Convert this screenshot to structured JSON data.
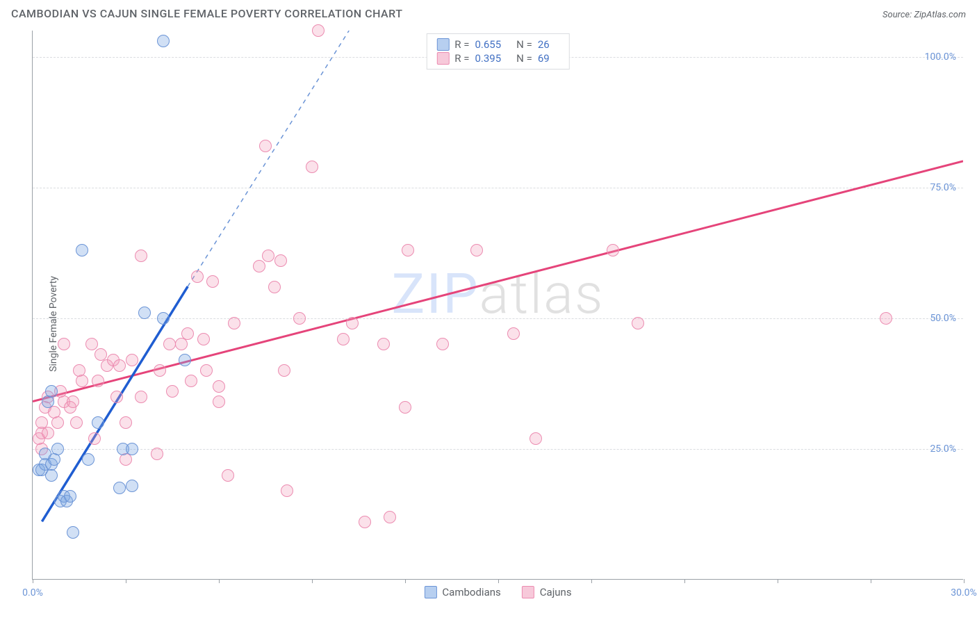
{
  "header": {
    "title": "CAMBODIAN VS CAJUN SINGLE FEMALE POVERTY CORRELATION CHART",
    "source_prefix": "Source: ",
    "source_name": "ZipAtlas.com"
  },
  "ylabel": "Single Female Poverty",
  "watermark": {
    "first": "ZIP",
    "rest": "atlas"
  },
  "chart": {
    "type": "scatter",
    "xlim": [
      0,
      30
    ],
    "ylim": [
      0,
      105
    ],
    "xticks": [
      0,
      3,
      6,
      9,
      12,
      15,
      18,
      21,
      24,
      27,
      30
    ],
    "xtick_labels": {
      "0": "0.0%",
      "30": "30.0%"
    },
    "yticks": [
      25,
      50,
      75,
      100
    ],
    "ytick_labels": {
      "25": "25.0%",
      "50": "50.0%",
      "75": "75.0%",
      "100": "100.0%"
    },
    "background_color": "#ffffff",
    "grid_color": "#dadce0",
    "axis_color": "#9aa0a6",
    "tick_label_color": "#6b94d6"
  },
  "series": {
    "cambodians": {
      "label": "Cambodians",
      "R": "0.655",
      "N": "26",
      "marker_fill": "rgba(123,167,227,0.35)",
      "marker_stroke": "#6b94d6",
      "marker_radius": 9,
      "trend_color": "#1f5dd1",
      "trend_dash_color": "#6b94d6",
      "trend_solid": {
        "x1": 0.3,
        "y1": 11,
        "x2": 5.0,
        "y2": 56
      },
      "trend_dash": {
        "x1": 5.0,
        "y1": 56,
        "x2": 10.2,
        "y2": 105
      },
      "points": [
        [
          0.2,
          21
        ],
        [
          0.3,
          21
        ],
        [
          0.4,
          22
        ],
        [
          0.4,
          24
        ],
        [
          0.6,
          22
        ],
        [
          0.6,
          20
        ],
        [
          0.7,
          23
        ],
        [
          0.5,
          34
        ],
        [
          0.6,
          36
        ],
        [
          0.8,
          25
        ],
        [
          0.9,
          15
        ],
        [
          1.0,
          16
        ],
        [
          1.1,
          15
        ],
        [
          1.2,
          16
        ],
        [
          1.3,
          9
        ],
        [
          1.6,
          63
        ],
        [
          1.8,
          23
        ],
        [
          2.1,
          30
        ],
        [
          2.8,
          17.5
        ],
        [
          2.9,
          25
        ],
        [
          3.2,
          25
        ],
        [
          3.2,
          18
        ],
        [
          3.6,
          51
        ],
        [
          4.2,
          50
        ],
        [
          4.2,
          103
        ],
        [
          4.9,
          42
        ]
      ]
    },
    "cajuns": {
      "label": "Cajuns",
      "R": "0.395",
      "N": "69",
      "marker_fill": "rgba(241,156,187,0.30)",
      "marker_stroke": "#ec8bb0",
      "marker_radius": 9,
      "trend_color": "#e5447a",
      "trend_solid": {
        "x1": 0,
        "y1": 34,
        "x2": 30,
        "y2": 80
      },
      "points": [
        [
          0.2,
          27
        ],
        [
          0.3,
          25
        ],
        [
          0.3,
          28
        ],
        [
          0.3,
          30
        ],
        [
          0.4,
          33
        ],
        [
          0.5,
          35
        ],
        [
          0.5,
          28
        ],
        [
          0.7,
          32
        ],
        [
          0.8,
          30
        ],
        [
          0.9,
          36
        ],
        [
          1.0,
          34
        ],
        [
          1.0,
          45
        ],
        [
          1.2,
          33
        ],
        [
          1.3,
          34
        ],
        [
          1.4,
          30
        ],
        [
          1.5,
          40
        ],
        [
          1.6,
          38
        ],
        [
          1.9,
          45
        ],
        [
          2.0,
          27
        ],
        [
          2.1,
          38
        ],
        [
          2.2,
          43
        ],
        [
          2.4,
          41
        ],
        [
          2.6,
          42
        ],
        [
          2.7,
          35
        ],
        [
          2.8,
          41
        ],
        [
          3.0,
          30
        ],
        [
          3.0,
          23
        ],
        [
          3.2,
          42
        ],
        [
          3.5,
          35
        ],
        [
          3.5,
          62
        ],
        [
          4.0,
          24
        ],
        [
          4.1,
          40
        ],
        [
          4.4,
          45
        ],
        [
          4.5,
          36
        ],
        [
          4.8,
          45
        ],
        [
          5.0,
          47
        ],
        [
          5.1,
          38
        ],
        [
          5.3,
          58
        ],
        [
          5.5,
          46
        ],
        [
          5.6,
          40
        ],
        [
          5.8,
          57
        ],
        [
          6.0,
          34
        ],
        [
          6.0,
          37
        ],
        [
          6.3,
          20
        ],
        [
          6.5,
          49
        ],
        [
          7.3,
          60
        ],
        [
          7.5,
          83
        ],
        [
          7.6,
          62
        ],
        [
          7.8,
          56
        ],
        [
          8.0,
          61
        ],
        [
          8.1,
          40
        ],
        [
          8.2,
          17
        ],
        [
          8.6,
          50
        ],
        [
          9.0,
          79
        ],
        [
          9.2,
          105
        ],
        [
          10.0,
          46
        ],
        [
          10.3,
          49
        ],
        [
          10.7,
          11
        ],
        [
          11.3,
          45
        ],
        [
          11.5,
          12
        ],
        [
          12.0,
          33
        ],
        [
          12.1,
          63
        ],
        [
          13.2,
          45
        ],
        [
          14.3,
          63
        ],
        [
          15.5,
          47
        ],
        [
          16.2,
          27
        ],
        [
          18.7,
          63
        ],
        [
          19.5,
          49
        ],
        [
          27.5,
          50
        ]
      ]
    }
  },
  "legend_top_labels": {
    "R": "R =",
    "N": "N ="
  },
  "legend_swatches": {
    "blue_fill": "rgba(123,167,227,0.55)",
    "blue_border": "#6b94d6",
    "pink_fill": "rgba(241,156,187,0.55)",
    "pink_border": "#ec8bb0"
  }
}
